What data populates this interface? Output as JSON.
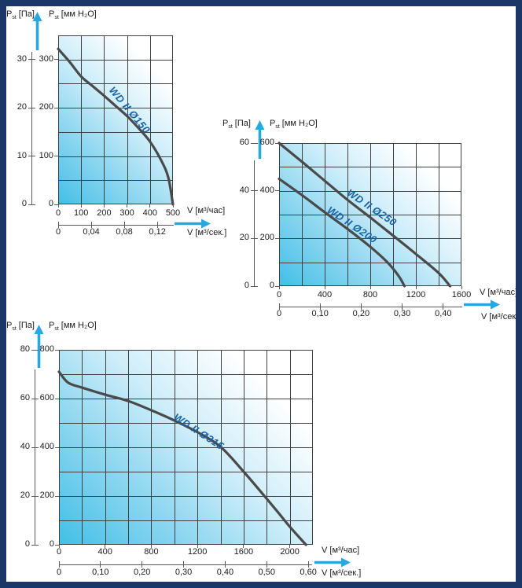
{
  "page": {
    "description": "Fan performance curves catalog page (WD II series duct fans)",
    "background": "#ffffff",
    "border_color": "#1a3767"
  },
  "colors": {
    "plot_gradient_start": "#41bfe7",
    "plot_gradient_end": "#ffffff",
    "grid_line": "#3f3f3f",
    "curve": "#4a4a4a",
    "curve_label": "#1b62a8",
    "arrow": "#29a7e0",
    "axis_text": "#1b1b1b"
  },
  "axis_labels": {
    "pressure_symbol": "P",
    "pressure_subscript": "st",
    "pressure_pa_unit": "[Па]",
    "pressure_mm_unit": "[мм H₂O]",
    "flow_hour": "V [м³/час]",
    "flow_sec": "V [м³/сек.]"
  },
  "chart_data": [
    {
      "type": "line",
      "title": "WD II Ø150",
      "xlabel": "V [м³/час]",
      "x2label": "V [м³/сек.]",
      "ylabel_pa": "Pst [Па]",
      "ylabel_mm": "Pst [мм H₂O]",
      "xlim": [
        0,
        500
      ],
      "ylim_mm": [
        0,
        350
      ],
      "grid_step_x": 100,
      "grid_step_y_mm": 50,
      "legend": "none",
      "grid": true,
      "x_ticks_hour": [
        "0",
        "100",
        "200",
        "300",
        "400",
        "500"
      ],
      "x_ticks_hour_values": [
        0,
        100,
        200,
        300,
        400,
        500
      ],
      "x_ticks_sec": [
        {
          "label": "0",
          "value_hour": 0
        },
        {
          "label": "0,04",
          "value_hour": 144
        },
        {
          "label": "0,08",
          "value_hour": 288
        },
        {
          "label": "0,12",
          "value_hour": 432
        }
      ],
      "y_ticks_pa": [
        {
          "label": "30",
          "mm": 300
        },
        {
          "label": "20",
          "mm": 200
        },
        {
          "label": "10",
          "mm": 100
        },
        {
          "label": "0",
          "mm": 0
        }
      ],
      "y_ticks_mm": [
        {
          "label": "300",
          "mm": 300
        },
        {
          "label": "200",
          "mm": 200
        },
        {
          "label": "100",
          "mm": 100
        },
        {
          "label": "0",
          "mm": 0
        }
      ],
      "series": [
        {
          "name": "WD II Ø150",
          "points_hour_mm": [
            [
              0,
              322
            ],
            [
              50,
              295
            ],
            [
              100,
              265
            ],
            [
              150,
              245
            ],
            [
              200,
              225
            ],
            [
              250,
              204
            ],
            [
              300,
              183
            ],
            [
              350,
              158
            ],
            [
              400,
              130
            ],
            [
              450,
              90
            ],
            [
              480,
              55
            ],
            [
              500,
              0
            ]
          ],
          "label": {
            "x_frac": 0.62,
            "y_frac": 0.44,
            "angle": 50
          }
        }
      ]
    },
    {
      "type": "line",
      "title": "WD II Ø250 / WD II Ø200",
      "xlabel": "V [м³/час]",
      "x2label": "V [м³/сек.]",
      "ylabel_pa": "Pst [Па]",
      "ylabel_mm": "Pst [мм H₂O]",
      "xlim": [
        0,
        1600
      ],
      "ylim_mm": [
        0,
        600
      ],
      "grid_step_x": 200,
      "grid_step_y_mm": 100,
      "legend": "none",
      "grid": true,
      "x_ticks_hour": [
        "0",
        "400",
        "800",
        "1200",
        "1600"
      ],
      "x_ticks_hour_values": [
        0,
        400,
        800,
        1200,
        1600
      ],
      "x_ticks_sec": [
        {
          "label": "0",
          "value_hour": 0
        },
        {
          "label": "0,10",
          "value_hour": 360
        },
        {
          "label": "0,20",
          "value_hour": 720
        },
        {
          "label": "0,30",
          "value_hour": 1080
        },
        {
          "label": "0,40",
          "value_hour": 1440
        }
      ],
      "y_ticks_pa": [
        {
          "label": "60",
          "mm": 600
        },
        {
          "label": "40",
          "mm": 400
        },
        {
          "label": "20",
          "mm": 200
        },
        {
          "label": "0",
          "mm": 0
        }
      ],
      "y_ticks_mm": [
        {
          "label": "600",
          "mm": 600
        },
        {
          "label": "400",
          "mm": 400
        },
        {
          "label": "200",
          "mm": 200
        },
        {
          "label": "0",
          "mm": 0
        }
      ],
      "series": [
        {
          "name": "WD II Ø250",
          "points_hour_mm": [
            [
              0,
              600
            ],
            [
              200,
              522
            ],
            [
              400,
              442
            ],
            [
              600,
              362
            ],
            [
              800,
              288
            ],
            [
              1000,
              212
            ],
            [
              1200,
              135
            ],
            [
              1400,
              55
            ],
            [
              1500,
              0
            ]
          ],
          "label": {
            "x_frac": 0.51,
            "y_frac": 0.45,
            "angle": 34
          }
        },
        {
          "name": "WD II Ø200",
          "points_hour_mm": [
            [
              0,
              450
            ],
            [
              200,
              382
            ],
            [
              400,
              310
            ],
            [
              600,
              240
            ],
            [
              800,
              165
            ],
            [
              950,
              100
            ],
            [
              1050,
              42
            ],
            [
              1100,
              0
            ]
          ],
          "label": {
            "x_frac": 0.4,
            "y_frac": 0.57,
            "angle": 34
          }
        }
      ]
    },
    {
      "type": "line",
      "title": "WD II Ø315",
      "xlabel": "V [м³/час]",
      "x2label": "V [м³/сек.]",
      "ylabel_pa": "Pst [Па]",
      "ylabel_mm": "Pst [мм H₂O]",
      "xlim": [
        0,
        2200
      ],
      "ylim_mm": [
        0,
        800
      ],
      "grid_step_x": 200,
      "grid_step_y_mm": 100,
      "legend": "none",
      "grid": true,
      "x_ticks_hour": [
        "0",
        "400",
        "800",
        "1200",
        "1600",
        "2000"
      ],
      "x_ticks_hour_values": [
        0,
        400,
        800,
        1200,
        1600,
        2000
      ],
      "x_ticks_sec": [
        {
          "label": "0",
          "value_hour": 0
        },
        {
          "label": "0,10",
          "value_hour": 360
        },
        {
          "label": "0,20",
          "value_hour": 720
        },
        {
          "label": "0,30",
          "value_hour": 1080
        },
        {
          "label": "0,40",
          "value_hour": 1440
        },
        {
          "label": "0,50",
          "value_hour": 1800
        },
        {
          "label": "0,60",
          "value_hour": 2160
        }
      ],
      "y_ticks_pa": [
        {
          "label": "80",
          "mm": 800
        },
        {
          "label": "60",
          "mm": 600
        },
        {
          "label": "40",
          "mm": 400
        },
        {
          "label": "20",
          "mm": 200
        },
        {
          "label": "0",
          "mm": 0
        }
      ],
      "y_ticks_mm": [
        {
          "label": "800",
          "mm": 800
        },
        {
          "label": "600",
          "mm": 600
        },
        {
          "label": "400",
          "mm": 400
        },
        {
          "label": "200",
          "mm": 200
        },
        {
          "label": "0",
          "mm": 0
        }
      ],
      "series": [
        {
          "name": "WD II Ø315",
          "points_hour_mm": [
            [
              0,
              710
            ],
            [
              80,
              665
            ],
            [
              200,
              645
            ],
            [
              400,
              616
            ],
            [
              600,
              590
            ],
            [
              800,
              552
            ],
            [
              1000,
              510
            ],
            [
              1200,
              462
            ],
            [
              1400,
              402
            ],
            [
              1600,
              300
            ],
            [
              1780,
              200
            ],
            [
              1900,
              132
            ],
            [
              2000,
              74
            ],
            [
              2140,
              0
            ]
          ],
          "label": {
            "x_frac": 0.55,
            "y_frac": 0.42,
            "angle": 33
          }
        }
      ]
    }
  ]
}
